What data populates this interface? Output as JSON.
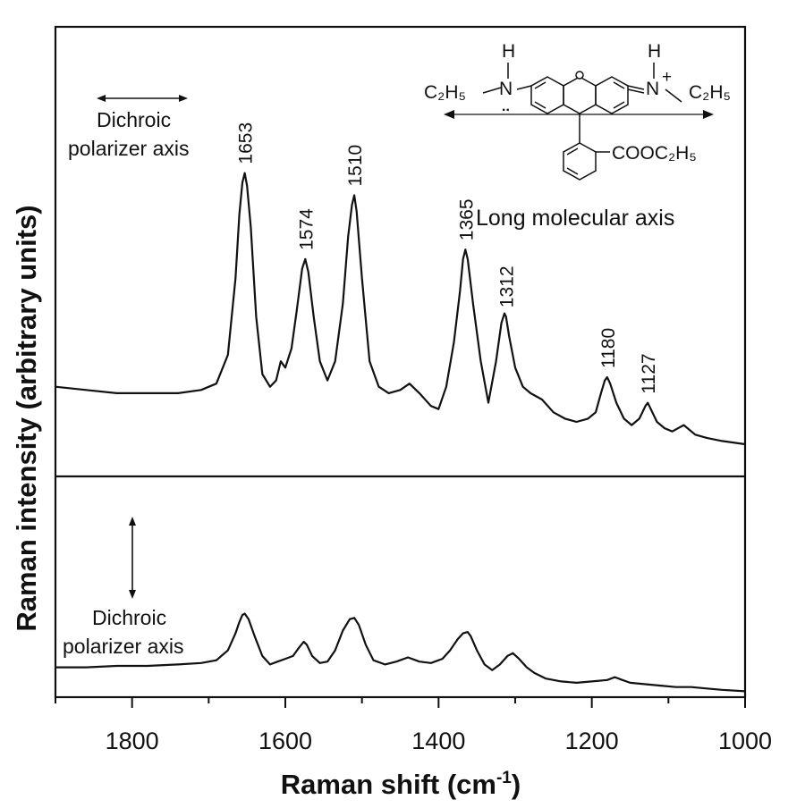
{
  "chart_data": {
    "type": "line",
    "xlabel": "Raman shift (cm",
    "xlabel_sup": "-1",
    "xlabel_close": ")",
    "ylabel": "Raman intensity (arbitrary units)",
    "xlim": [
      1900,
      1000
    ],
    "x_ticks": [
      1800,
      1600,
      1400,
      1200,
      1000
    ],
    "grid": false,
    "panels": [
      {
        "name": "top",
        "ylim": [
          0,
          100
        ],
        "polarizer": {
          "line1": "Dichroic",
          "line2": "polarizer axis",
          "arrow": "horizontal"
        },
        "peak_labels": [
          "1653",
          "1574",
          "1510",
          "1365",
          "1312",
          "1180",
          "1127"
        ],
        "series": [
          {
            "x": [
              1900,
              1860,
              1820,
              1780,
              1740,
              1710,
              1690,
              1675,
              1665,
              1660,
              1656,
              1653,
              1650,
              1645,
              1638,
              1630,
              1620,
              1612,
              1606,
              1600,
              1592,
              1585,
              1578,
              1574,
              1570,
              1563,
              1555,
              1545,
              1535,
              1525,
              1518,
              1513,
              1510,
              1507,
              1500,
              1490,
              1478,
              1465,
              1450,
              1438,
              1425,
              1410,
              1400,
              1390,
              1380,
              1372,
              1368,
              1365,
              1362,
              1355,
              1345,
              1335,
              1325,
              1318,
              1314,
              1312,
              1308,
              1300,
              1290,
              1280,
              1265,
              1250,
              1235,
              1220,
              1205,
              1195,
              1188,
              1183,
              1180,
              1176,
              1168,
              1158,
              1148,
              1138,
              1130,
              1127,
              1123,
              1115,
              1105,
              1095,
              1080,
              1065,
              1050,
              1030,
              1000
            ],
            "y": [
              18,
              17,
              16,
              16,
              16,
              17,
              19,
              28,
              52,
              72,
              82,
              85,
              81,
              68,
              40,
              22,
              18,
              20,
              26,
              24,
              30,
              42,
              55,
              58,
              54,
              40,
              26,
              20,
              26,
              44,
              65,
              75,
              78,
              73,
              52,
              26,
              18,
              16,
              17,
              19,
              16,
              12,
              11,
              18,
              32,
              48,
              58,
              61,
              58,
              44,
              26,
              13,
              26,
              38,
              41,
              40,
              34,
              24,
              18,
              16,
              14,
              10,
              8,
              7,
              8,
              10,
              16,
              20,
              21,
              19,
              13,
              8,
              6,
              8,
              12,
              13,
              11,
              7,
              5,
              4,
              6,
              3,
              2,
              1,
              0
            ]
          }
        ]
      },
      {
        "name": "bottom",
        "ylim": [
          0,
          100
        ],
        "polarizer": {
          "line1": "Dichroic",
          "line2": "polarizer axis",
          "arrow": "vertical"
        },
        "series": [
          {
            "x": [
              1900,
              1860,
              1820,
              1780,
              1740,
              1710,
              1690,
              1675,
              1665,
              1660,
              1656,
              1653,
              1648,
              1640,
              1630,
              1620,
              1610,
              1600,
              1590,
              1582,
              1576,
              1572,
              1565,
              1555,
              1545,
              1535,
              1525,
              1516,
              1510,
              1504,
              1495,
              1485,
              1470,
              1455,
              1440,
              1425,
              1410,
              1395,
              1385,
              1375,
              1368,
              1362,
              1358,
              1350,
              1340,
              1330,
              1320,
              1310,
              1303,
              1295,
              1285,
              1275,
              1260,
              1240,
              1220,
              1200,
              1180,
              1170,
              1160,
              1150,
              1130,
              1110,
              1090,
              1070,
              1050,
              1030,
              1000
            ],
            "y": [
              18,
              18,
              19,
              19,
              20,
              21,
              23,
              30,
              42,
              50,
              55,
              56,
              52,
              40,
              26,
              20,
              22,
              24,
              26,
              32,
              36,
              34,
              26,
              21,
              22,
              30,
              44,
              52,
              53,
              48,
              34,
              23,
              20,
              22,
              25,
              22,
              21,
              24,
              30,
              38,
              42,
              43,
              40,
              30,
              20,
              16,
              20,
              26,
              28,
              24,
              18,
              14,
              10,
              8,
              7,
              8,
              9,
              11,
              9,
              7,
              6,
              5,
              4,
              4,
              3,
              2,
              1
            ]
          }
        ]
      }
    ],
    "inset": {
      "H": "H",
      "N": "N",
      "plus": "+",
      "dots": "..",
      "C2H5": "C₂H₅",
      "ester": "COOC₂H₅",
      "caption": "Long molecular axis"
    }
  }
}
